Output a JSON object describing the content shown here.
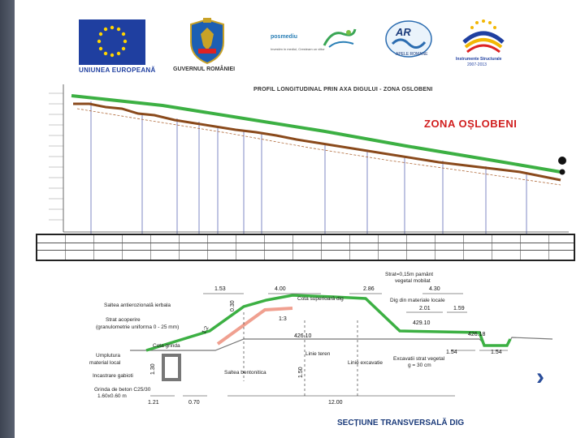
{
  "logos": {
    "eu": {
      "label": "UNIUNEA EUROPEANĂ",
      "color": "#1f3fa0"
    },
    "gov": {
      "label": "GUVERNUL ROMÂNIEI"
    },
    "posmediu": {
      "label": "posmediu",
      "subtitle": "Investim in mediul, Cresteam un viitor"
    },
    "apele": {
      "label": "APELE ROMANE"
    },
    "instrumente": {
      "label": "Instrumente Structurale",
      "years": "2007-2013"
    }
  },
  "profile": {
    "title": "PROFIL LONGITUDINAL PRIN AXA DIGULUI - ZONA OSLOBENI",
    "zone_label": "ZONA OȘLOBENI"
  },
  "section": {
    "labels": {
      "strat_vegetal": "Strat=0,15m pamânt",
      "strat_vegetal_2": "vegetal mobilat",
      "cota_dig": "Cota superioară dig",
      "dig_material": "Dig din materiale locale",
      "saltea_antierozionala": "Saltea antierozională ierbala",
      "strat_acoperire": "Strat acoperire",
      "granulometrie": "(granulometrie uniforma 0 - 25 mm)",
      "cota_grinda": "Cota grinda",
      "umplutura": "Umplutura",
      "material_local": "material local",
      "incastrare": "Incastrare gabioti",
      "grinda_beton": "Grinda de beton C25/30",
      "grinda_dim": "1.60x0.60 m",
      "saltea_bentonitica": "Saltea bentonitica",
      "linie_teren": "Linie teren",
      "linie_excavatie": "Linie excavatie",
      "excavatii": "Excavatii strat vegetal",
      "excavatii_g": "g = 30 cm"
    },
    "dimensions": {
      "d1_53": "1.53",
      "d4_00": "4.00",
      "d2_86": "2.86",
      "d4_30": "4.30",
      "d2_01": "2.01",
      "d1_59": "1.59",
      "e429_10": "429.10",
      "e426_10": "426.10",
      "e426_18": "426.18",
      "d1_54a": "1.54",
      "d1_54b": "1.54",
      "d1_21": "1.21",
      "d0_70": "0.70",
      "d12_00": "12.00",
      "slope1": "1:3",
      "slope2": "1:2",
      "h1": "1.30",
      "h2": "1.50",
      "h3": "0.30"
    },
    "title": "SECȚIUNE TRANSVERSALĂ DIG"
  },
  "nav": {
    "next": "›"
  },
  "colors": {
    "dike_green": "#3cb043",
    "terrain_brown": "#8a4a1c",
    "zone_red": "#d11f1f",
    "salmon": "#f0a090"
  }
}
